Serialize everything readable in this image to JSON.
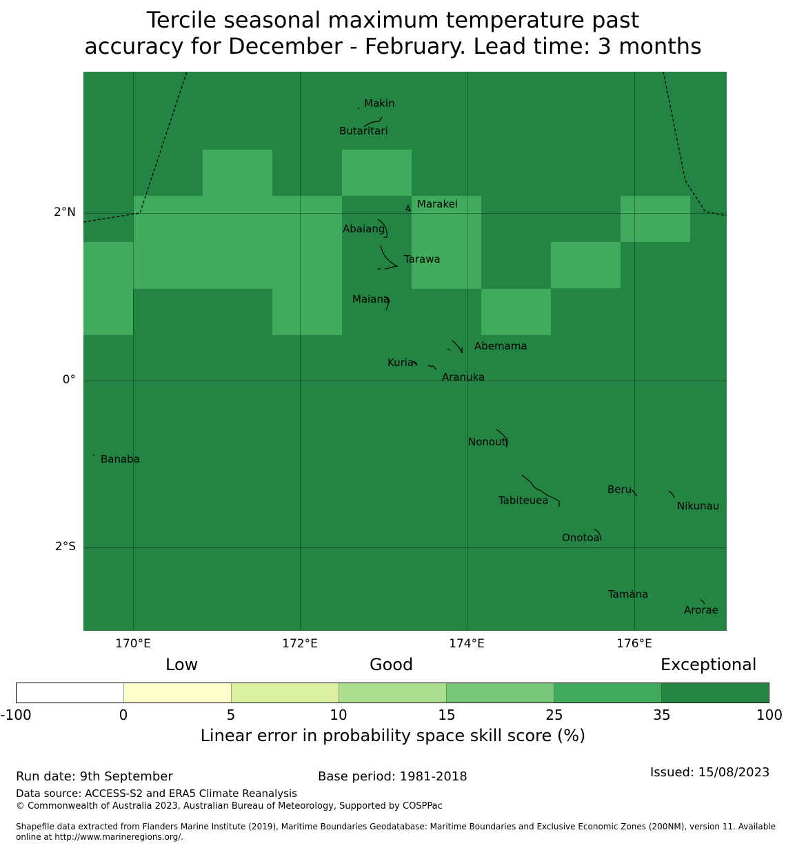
{
  "title": {
    "line1": "Tercile seasonal maximum temperature past",
    "line2": "accuracy for December - February. Lead time: 3 months"
  },
  "map": {
    "colors": {
      "exceptional": "#238443",
      "very_good": "#41ab5d",
      "border": "#000000"
    },
    "y_ticks": [
      "2°N",
      "0°",
      "2°S"
    ],
    "x_ticks": [
      "170°E",
      "172°E",
      "174°E",
      "176°E"
    ],
    "places": {
      "makin": "Makin",
      "butaritari": "Butaritari",
      "marakei": "Marakei",
      "abaiang": "Abaiang",
      "tarawa": "Tarawa",
      "maiana": "Maiana",
      "abemama": "Abemama",
      "kuria": "Kuria",
      "aranuka": "Aranuka",
      "banaba": "Banaba",
      "nonouti": "Nonouti",
      "beru": "Beru",
      "tabiteuea": "Tabiteuea",
      "nikunau": "Nikunau",
      "onotoa": "Onotoa",
      "tamana": "Tamana",
      "arorae": "Arorae"
    }
  },
  "legend": {
    "categories": {
      "low": "Low",
      "good": "Good",
      "exceptional": "Exceptional"
    },
    "colors": [
      "#ffffff",
      "#ffffcc",
      "#d9f0a3",
      "#addd8e",
      "#78c679",
      "#41ab5d",
      "#238443"
    ],
    "ticks": [
      "-100",
      "0",
      "5",
      "10",
      "15",
      "25",
      "35",
      "100"
    ],
    "label": "Linear error in probability space skill score (%)"
  },
  "footer": {
    "run_date": "Run date: 9th September",
    "base_period": "Base period: 1981-2018",
    "issued": "Issued: 15/08/2023",
    "data_source": "Data source: ACCESS-S2 and ERA5 Climate Reanalysis",
    "copyright": "© Commonwealth of Australia 2023, Australian Bureau of Meteorology, Supported by COSPPac",
    "shapefile_line1": "Shapefile data extracted from Flanders Marine Institute (2019), Maritime Boundaries Geodatabase: Maritime Boundaries and Exclusive Economic Zones (200NM), version 11. Available",
    "shapefile_line2": "online at http://www.marineregions.org/."
  }
}
